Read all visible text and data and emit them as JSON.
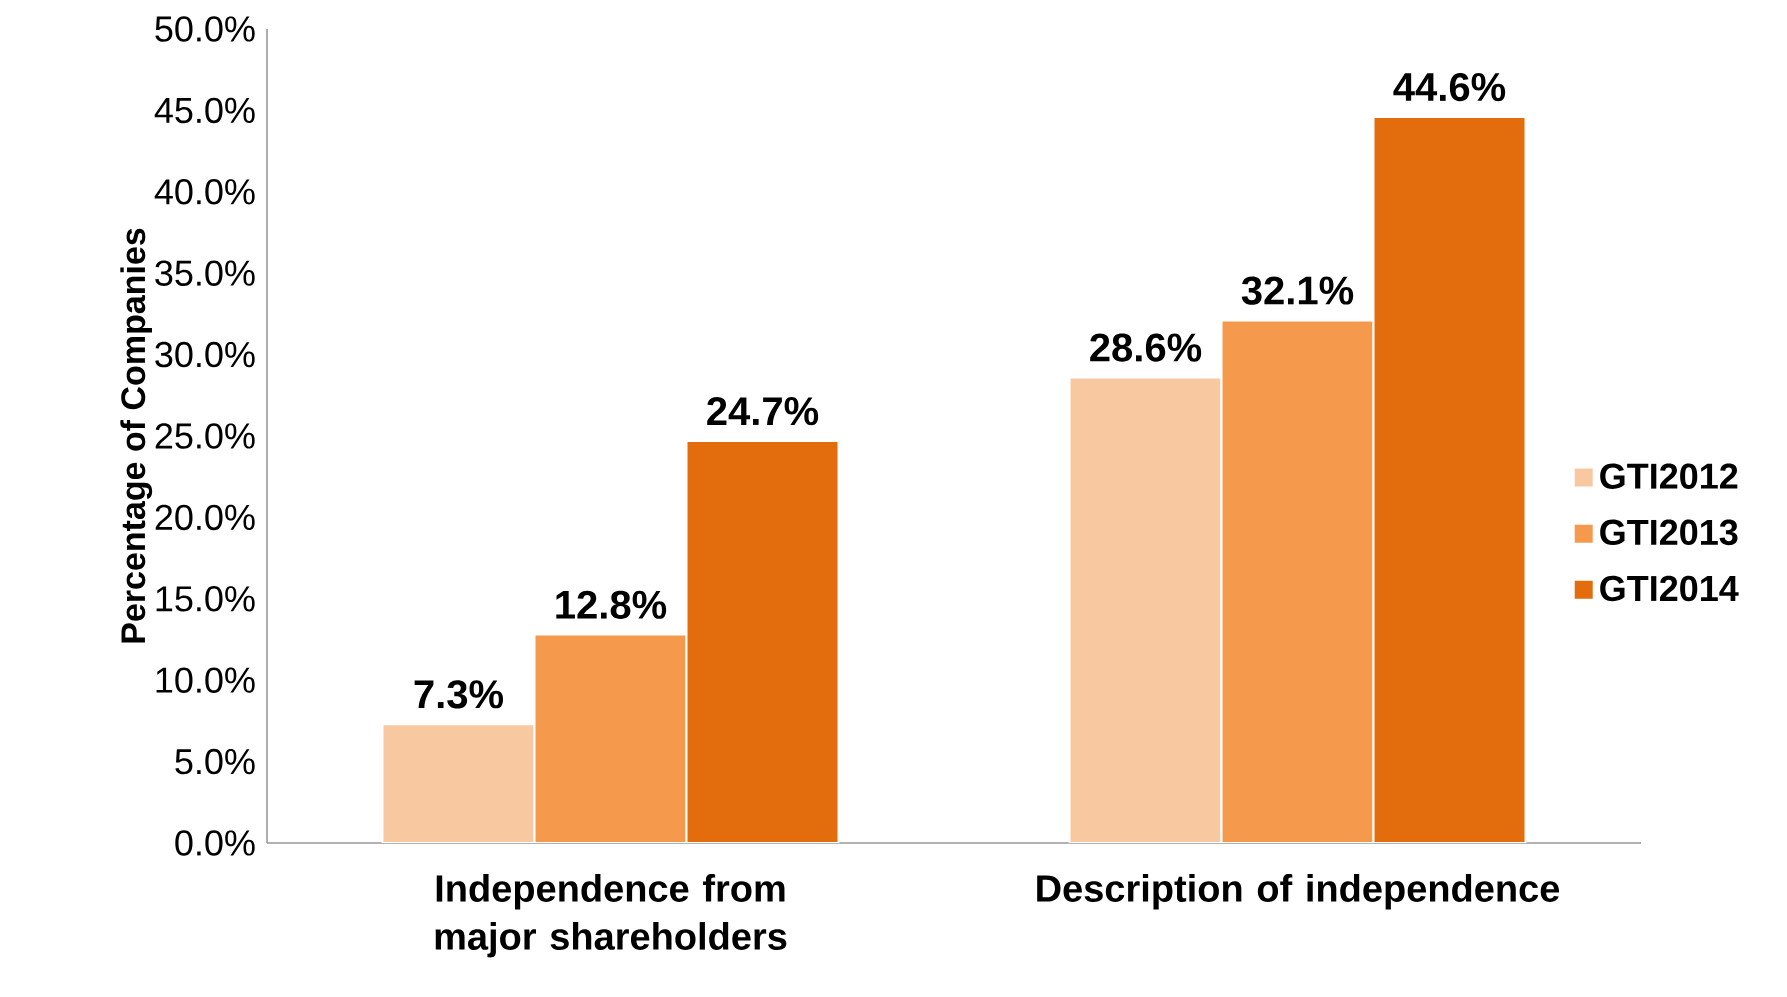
{
  "chart_data": {
    "type": "bar",
    "ylabel": "Percentage of Companies",
    "categories": [
      "Independence from major shareholders",
      "Description of independence"
    ],
    "series": [
      {
        "name": "GTI2012",
        "color": "#f8c8a0",
        "values": [
          7.3,
          28.6
        ],
        "value_labels": [
          "7.3%",
          "28.6%"
        ]
      },
      {
        "name": "GTI2013",
        "color": "#f59a4c",
        "values": [
          12.8,
          32.1
        ],
        "value_labels": [
          "12.8%",
          "32.1%"
        ]
      },
      {
        "name": "GTI2014",
        "color": "#e36c0d",
        "values": [
          24.7,
          44.6
        ],
        "value_labels": [
          "24.7%",
          "44.6%"
        ]
      }
    ],
    "ylim": [
      0,
      50
    ],
    "yticks": [
      {
        "value": 0,
        "label": "0.0%"
      },
      {
        "value": 5,
        "label": "5.0%"
      },
      {
        "value": 10,
        "label": "10.0%"
      },
      {
        "value": 15,
        "label": "15.0%"
      },
      {
        "value": 20,
        "label": "20.0%"
      },
      {
        "value": 25,
        "label": "25.0%"
      },
      {
        "value": 30,
        "label": "30.0%"
      },
      {
        "value": 35,
        "label": "35.0%"
      },
      {
        "value": 40,
        "label": "40.0%"
      },
      {
        "value": 45,
        "label": "45.0%"
      },
      {
        "value": 50,
        "label": "50.0%"
      }
    ],
    "grid": false,
    "legend": "right"
  }
}
